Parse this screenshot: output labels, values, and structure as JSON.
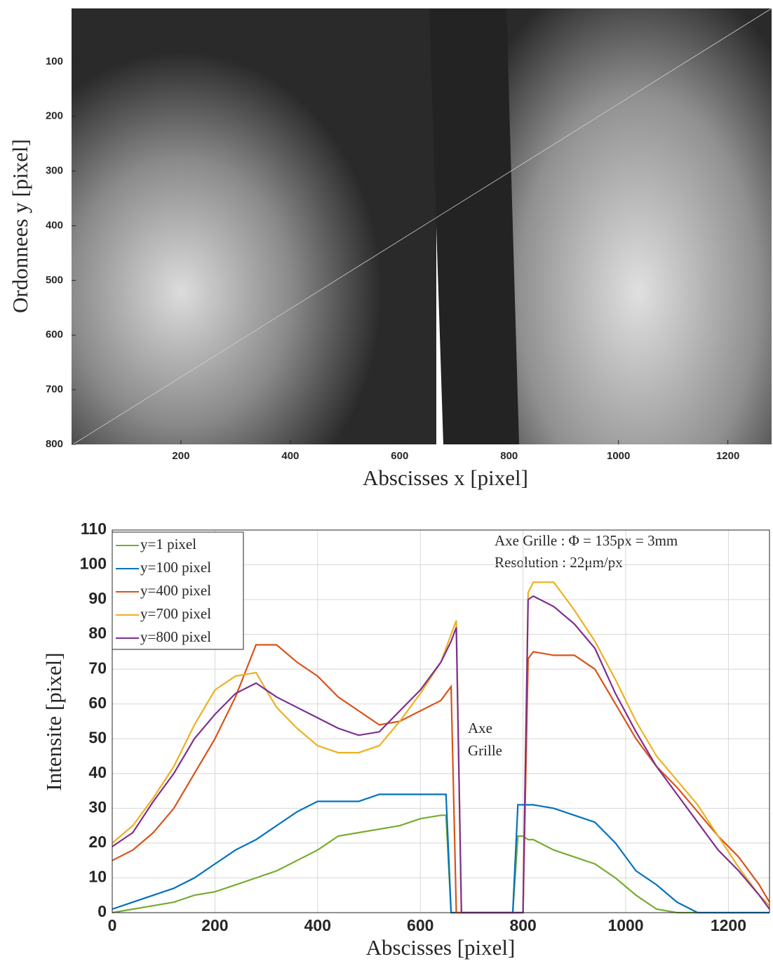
{
  "chart_data": [
    {
      "type": "image",
      "xlabel": "Abscisses x [pixel]",
      "ylabel": "Ordonnees y [pixel]",
      "xlim": [
        0,
        1280
      ],
      "ylim": [
        0,
        800
      ],
      "y_inverted": true,
      "xticks": [
        200,
        400,
        600,
        800,
        1000,
        1200
      ],
      "yticks": [
        100,
        200,
        300,
        400,
        500,
        600,
        700,
        800
      ]
    },
    {
      "type": "line",
      "xlabel": "Abscisses [pixel]",
      "ylabel": "Intensite [pixel]",
      "annotations": [
        "Axe Grille : Φ = 135px = 3mm",
        "Resolution : 22μm/px",
        "Axe",
        "Grille"
      ],
      "xlim": [
        0,
        1280
      ],
      "ylim": [
        0,
        110
      ],
      "xticks": [
        0,
        200,
        400,
        600,
        800,
        1000,
        1200
      ],
      "yticks": [
        0,
        10,
        20,
        30,
        40,
        50,
        60,
        70,
        80,
        90,
        100,
        110
      ],
      "grid": true,
      "legend": "upper-left",
      "x": [
        0,
        40,
        80,
        120,
        160,
        200,
        240,
        280,
        320,
        360,
        400,
        440,
        480,
        520,
        560,
        600,
        640,
        650,
        660,
        670,
        680,
        780,
        790,
        800,
        810,
        820,
        860,
        900,
        940,
        980,
        1020,
        1060,
        1100,
        1140,
        1180,
        1220,
        1260,
        1280
      ],
      "series": [
        {
          "name": "y=1 pixel",
          "color": "#77ac30",
          "values": [
            0,
            1,
            2,
            3,
            5,
            6,
            8,
            10,
            12,
            15,
            18,
            22,
            23,
            24,
            25,
            27,
            28,
            28,
            0,
            0,
            0,
            0,
            22,
            22,
            21,
            21,
            18,
            16,
            14,
            10,
            5,
            1,
            0,
            0,
            0,
            0,
            0,
            0
          ]
        },
        {
          "name": "y=100 pixel",
          "color": "#0072bd",
          "values": [
            1,
            3,
            5,
            7,
            10,
            14,
            18,
            21,
            25,
            29,
            32,
            32,
            32,
            34,
            34,
            34,
            34,
            34,
            0,
            0,
            0,
            0,
            31,
            31,
            31,
            31,
            30,
            28,
            26,
            20,
            12,
            8,
            3,
            0,
            0,
            0,
            0,
            0
          ]
        },
        {
          "name": "y=400 pixel",
          "color": "#d95319",
          "values": [
            15,
            18,
            23,
            30,
            40,
            50,
            62,
            77,
            77,
            72,
            68,
            62,
            58,
            54,
            55,
            58,
            61,
            63,
            65,
            0,
            0,
            0,
            0,
            0,
            73,
            75,
            74,
            74,
            70,
            60,
            50,
            42,
            36,
            29,
            22,
            16,
            8,
            3
          ]
        },
        {
          "name": "y=700 pixel",
          "color": "#edb120",
          "values": [
            20,
            25,
            33,
            42,
            54,
            64,
            68,
            69,
            59,
            53,
            48,
            46,
            46,
            48,
            55,
            63,
            72,
            76,
            80,
            84,
            0,
            0,
            0,
            0,
            92,
            95,
            95,
            87,
            78,
            67,
            55,
            45,
            38,
            31,
            22,
            13,
            5,
            2
          ]
        },
        {
          "name": "y=800 pixel",
          "color": "#7e2f8e",
          "values": [
            19,
            23,
            32,
            40,
            50,
            57,
            63,
            66,
            62,
            59,
            56,
            53,
            51,
            52,
            58,
            64,
            72,
            75,
            78,
            82,
            0,
            0,
            0,
            0,
            90,
            91,
            88,
            83,
            76,
            63,
            52,
            42,
            34,
            26,
            18,
            12,
            5,
            1
          ]
        }
      ]
    }
  ]
}
